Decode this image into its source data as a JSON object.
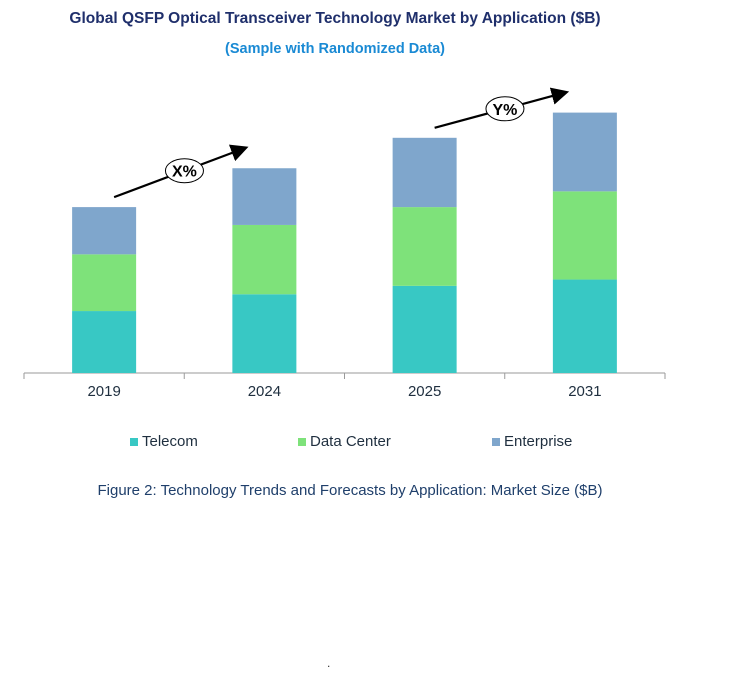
{
  "chart_data": {
    "type": "bar",
    "stacked": true,
    "title": "Global QSFP Optical Transceiver Technology Market by Application ($B)",
    "subtitle": "(Sample with Randomized Data)",
    "categories": [
      "2019",
      "2024",
      "2025",
      "2031"
    ],
    "series": [
      {
        "name": "Telecom",
        "color": "#38c8c4",
        "values": [
          59,
          75,
          83,
          89
        ]
      },
      {
        "name": "Data Center",
        "color": "#7ee27a",
        "values": [
          54,
          66,
          75,
          84
        ]
      },
      {
        "name": "Enterprise",
        "color": "#7fa6cc",
        "values": [
          45,
          54,
          66,
          75
        ]
      }
    ],
    "ylim": [
      0,
      260
    ],
    "grid": false,
    "legend": "bottom",
    "annotations": [
      {
        "label": "X%",
        "from": "2019",
        "to": "2024"
      },
      {
        "label": "Y%",
        "from": "2025",
        "to": "2031"
      }
    ],
    "caption": "Figure 2: Technology  Trends  and Forecasts by Application: Market Size ($B)"
  },
  "footer_mark": "."
}
